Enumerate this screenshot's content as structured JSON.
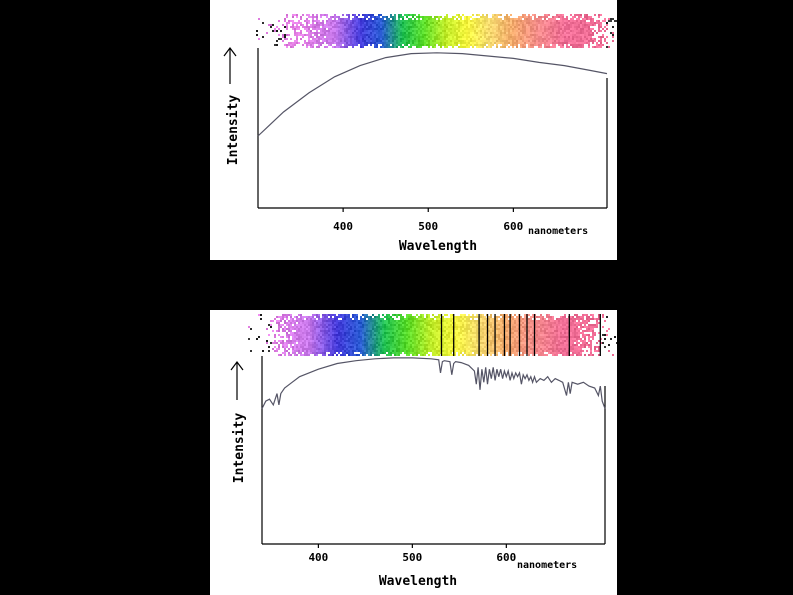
{
  "chart_data": [
    {
      "type": "line",
      "title": "",
      "xlabel": "Wavelength",
      "ylabel": "Intensity",
      "x_unit": "nanometers",
      "x_ticks": [
        400,
        500,
        600
      ],
      "xlim": [
        300,
        710
      ],
      "ylim": [
        0,
        1
      ],
      "grid": false,
      "spectrum_band": {
        "type": "continuous",
        "absorption_lines_nm": []
      },
      "series": [
        {
          "x": [
            300,
            330,
            360,
            390,
            420,
            450,
            480,
            510,
            540,
            570,
            600,
            630,
            660,
            690,
            710
          ],
          "values": [
            0.45,
            0.6,
            0.72,
            0.82,
            0.89,
            0.94,
            0.965,
            0.97,
            0.965,
            0.95,
            0.935,
            0.91,
            0.89,
            0.86,
            0.84
          ]
        }
      ]
    },
    {
      "type": "line",
      "title": "",
      "xlabel": "Wavelength",
      "ylabel": "Intensity",
      "x_unit": "nanometers",
      "x_ticks": [
        400,
        500,
        600
      ],
      "xlim": [
        340,
        705
      ],
      "ylim": [
        0,
        1
      ],
      "grid": false,
      "spectrum_band": {
        "type": "absorption",
        "absorption_lines_nm": [
          531,
          544,
          571,
          580,
          588,
          598,
          604,
          614,
          622,
          630,
          667,
          700
        ]
      },
      "series": [
        {
          "x": [
            340,
            344,
            348,
            352,
            356,
            358,
            360,
            364,
            372,
            380,
            400,
            420,
            440,
            460,
            480,
            500,
            520,
            528,
            530,
            532,
            534,
            540,
            542,
            544,
            546,
            552,
            560,
            566,
            568,
            570,
            572,
            574,
            576,
            578,
            580,
            582,
            584,
            586,
            588,
            590,
            592,
            594,
            596,
            598,
            600,
            602,
            604,
            606,
            608,
            610,
            612,
            614,
            616,
            618,
            620,
            622,
            624,
            626,
            628,
            630,
            632,
            636,
            640,
            644,
            648,
            652,
            656,
            660,
            664,
            666,
            668,
            670,
            676,
            682,
            688,
            694,
            698,
            700,
            702,
            705
          ],
          "values": [
            0.72,
            0.76,
            0.77,
            0.74,
            0.8,
            0.74,
            0.8,
            0.83,
            0.86,
            0.89,
            0.93,
            0.96,
            0.975,
            0.985,
            0.99,
            0.99,
            0.985,
            0.98,
            0.91,
            0.97,
            0.975,
            0.97,
            0.9,
            0.96,
            0.97,
            0.965,
            0.95,
            0.92,
            0.85,
            0.94,
            0.82,
            0.93,
            0.86,
            0.94,
            0.85,
            0.93,
            0.88,
            0.94,
            0.87,
            0.93,
            0.89,
            0.93,
            0.88,
            0.92,
            0.89,
            0.92,
            0.87,
            0.91,
            0.88,
            0.91,
            0.89,
            0.91,
            0.85,
            0.9,
            0.88,
            0.9,
            0.87,
            0.89,
            0.86,
            0.89,
            0.86,
            0.88,
            0.87,
            0.89,
            0.86,
            0.88,
            0.87,
            0.86,
            0.79,
            0.86,
            0.8,
            0.86,
            0.85,
            0.86,
            0.84,
            0.83,
            0.79,
            0.84,
            0.76,
            0.72
          ]
        }
      ]
    }
  ]
}
